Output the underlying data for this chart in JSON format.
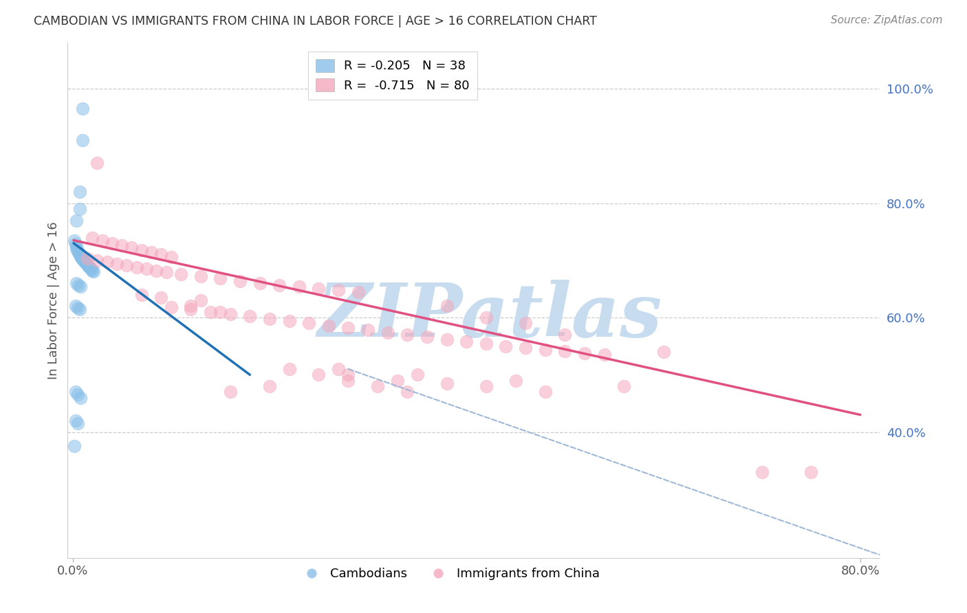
{
  "title": "CAMBODIAN VS IMMIGRANTS FROM CHINA IN LABOR FORCE | AGE > 16 CORRELATION CHART",
  "source": "Source: ZipAtlas.com",
  "ylabel": "In Labor Force | Age > 16",
  "right_ytick_labels": [
    "100.0%",
    "80.0%",
    "60.0%",
    "40.0%"
  ],
  "right_ytick_values": [
    1.0,
    0.8,
    0.6,
    0.4
  ],
  "xlim": [
    -0.005,
    0.82
  ],
  "ylim": [
    0.18,
    1.08
  ],
  "xtick_labels": [
    "0.0%",
    "80.0%"
  ],
  "xtick_values": [
    0.0,
    0.8
  ],
  "legend_label_blue": "R = -0.205   N = 38",
  "legend_label_pink": "R =  -0.715   N = 80",
  "watermark": "ZIPatlas",
  "watermark_color": "#c8dcf0",
  "blue_color": "#88bfe8",
  "pink_color": "#f4a8bc",
  "blue_line_color": "#2171b5",
  "pink_line_color": "#e05080",
  "dashed_line_color": "#a0b8d8",
  "grid_color": "#cccccc",
  "right_axis_color": "#4472c4",
  "cambodian_points": [
    [
      0.01,
      0.965
    ],
    [
      0.01,
      0.91
    ],
    [
      0.007,
      0.82
    ],
    [
      0.007,
      0.79
    ],
    [
      0.004,
      0.77
    ],
    [
      0.002,
      0.735
    ],
    [
      0.003,
      0.728
    ],
    [
      0.004,
      0.724
    ],
    [
      0.004,
      0.72
    ],
    [
      0.005,
      0.716
    ],
    [
      0.006,
      0.713
    ],
    [
      0.007,
      0.71
    ],
    [
      0.008,
      0.707
    ],
    [
      0.009,
      0.704
    ],
    [
      0.01,
      0.702
    ],
    [
      0.011,
      0.7
    ],
    [
      0.012,
      0.698
    ],
    [
      0.013,
      0.696
    ],
    [
      0.014,
      0.694
    ],
    [
      0.015,
      0.692
    ],
    [
      0.016,
      0.69
    ],
    [
      0.017,
      0.688
    ],
    [
      0.018,
      0.686
    ],
    [
      0.019,
      0.684
    ],
    [
      0.02,
      0.682
    ],
    [
      0.021,
      0.68
    ],
    [
      0.004,
      0.66
    ],
    [
      0.006,
      0.657
    ],
    [
      0.008,
      0.654
    ],
    [
      0.003,
      0.62
    ],
    [
      0.005,
      0.617
    ],
    [
      0.007,
      0.614
    ],
    [
      0.003,
      0.47
    ],
    [
      0.005,
      0.465
    ],
    [
      0.008,
      0.46
    ],
    [
      0.003,
      0.42
    ],
    [
      0.005,
      0.415
    ],
    [
      0.002,
      0.375
    ]
  ],
  "china_points": [
    [
      0.025,
      0.87
    ],
    [
      0.02,
      0.74
    ],
    [
      0.03,
      0.735
    ],
    [
      0.04,
      0.73
    ],
    [
      0.05,
      0.726
    ],
    [
      0.06,
      0.722
    ],
    [
      0.07,
      0.718
    ],
    [
      0.08,
      0.714
    ],
    [
      0.09,
      0.71
    ],
    [
      0.1,
      0.706
    ],
    [
      0.015,
      0.703
    ],
    [
      0.025,
      0.7
    ],
    [
      0.035,
      0.697
    ],
    [
      0.045,
      0.694
    ],
    [
      0.055,
      0.691
    ],
    [
      0.065,
      0.688
    ],
    [
      0.075,
      0.685
    ],
    [
      0.085,
      0.682
    ],
    [
      0.095,
      0.679
    ],
    [
      0.11,
      0.676
    ],
    [
      0.13,
      0.672
    ],
    [
      0.15,
      0.668
    ],
    [
      0.17,
      0.664
    ],
    [
      0.19,
      0.66
    ],
    [
      0.21,
      0.657
    ],
    [
      0.23,
      0.654
    ],
    [
      0.25,
      0.651
    ],
    [
      0.27,
      0.648
    ],
    [
      0.29,
      0.645
    ],
    [
      0.1,
      0.618
    ],
    [
      0.12,
      0.614
    ],
    [
      0.14,
      0.61
    ],
    [
      0.16,
      0.606
    ],
    [
      0.18,
      0.602
    ],
    [
      0.2,
      0.598
    ],
    [
      0.22,
      0.594
    ],
    [
      0.24,
      0.59
    ],
    [
      0.26,
      0.586
    ],
    [
      0.28,
      0.582
    ],
    [
      0.3,
      0.578
    ],
    [
      0.32,
      0.574
    ],
    [
      0.34,
      0.57
    ],
    [
      0.36,
      0.566
    ],
    [
      0.38,
      0.562
    ],
    [
      0.4,
      0.558
    ],
    [
      0.42,
      0.554
    ],
    [
      0.44,
      0.55
    ],
    [
      0.46,
      0.547
    ],
    [
      0.48,
      0.544
    ],
    [
      0.5,
      0.541
    ],
    [
      0.52,
      0.538
    ],
    [
      0.54,
      0.535
    ],
    [
      0.22,
      0.51
    ],
    [
      0.25,
      0.5
    ],
    [
      0.28,
      0.49
    ],
    [
      0.31,
      0.48
    ],
    [
      0.34,
      0.47
    ],
    [
      0.28,
      0.5
    ],
    [
      0.42,
      0.48
    ],
    [
      0.45,
      0.49
    ],
    [
      0.2,
      0.48
    ],
    [
      0.16,
      0.47
    ],
    [
      0.27,
      0.51
    ],
    [
      0.35,
      0.5
    ],
    [
      0.15,
      0.61
    ],
    [
      0.12,
      0.62
    ],
    [
      0.07,
      0.64
    ],
    [
      0.09,
      0.635
    ],
    [
      0.13,
      0.63
    ],
    [
      0.33,
      0.49
    ],
    [
      0.38,
      0.485
    ],
    [
      0.56,
      0.48
    ],
    [
      0.48,
      0.47
    ],
    [
      0.46,
      0.59
    ],
    [
      0.5,
      0.57
    ],
    [
      0.42,
      0.6
    ],
    [
      0.38,
      0.62
    ],
    [
      0.6,
      0.54
    ],
    [
      0.7,
      0.33
    ],
    [
      0.75,
      0.33
    ]
  ],
  "blue_line": {
    "x0": 0.001,
    "y0": 0.73,
    "x1": 0.18,
    "y1": 0.5
  },
  "pink_line": {
    "x0": 0.001,
    "y0": 0.735,
    "x1": 0.8,
    "y1": 0.43
  },
  "dashed_line": {
    "x0": 0.28,
    "y0": 0.51,
    "x1": 0.82,
    "y1": 0.185
  }
}
